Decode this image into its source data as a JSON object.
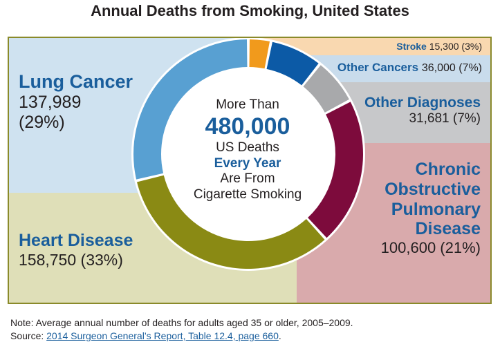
{
  "chart_data": {
    "type": "pie",
    "title": "Annual Deaths from Smoking, United States",
    "categories": [
      "Stroke",
      "Other Cancers",
      "Other Diagnoses",
      "Chronic Obstructive Pulmonary Disease",
      "Heart Disease",
      "Lung Cancer"
    ],
    "series": [
      {
        "values": [
          15300,
          36000,
          31681,
          100600,
          158750,
          137989
        ],
        "value_labels": [
          "15,300",
          "36,000",
          "31,681",
          "100,600",
          "158,750",
          "137,989"
        ],
        "percent_labels": [
          "(3%)",
          "(7%)",
          "(7%)",
          "(21%)",
          "(33%)",
          "(29%)"
        ]
      }
    ],
    "colors": [
      "#f19a1c",
      "#0c5aa6",
      "#a8a9ab",
      "#7d0b3c",
      "#8a8a14",
      "#58a0d2"
    ],
    "panel_colors": [
      "#f9d8b0",
      "#c9dcec",
      "#c7c8ca",
      "#d9aaac",
      "#dfdfb8",
      "#cfe2f0"
    ],
    "donut": true,
    "center_text": {
      "line1": "More Than",
      "big": "480,000",
      "line3": "US Deaths",
      "line4": "Every Year",
      "line5": "Are From",
      "line6": "Cigarette Smoking"
    }
  },
  "labels": {
    "lung": {
      "name": "Lung Cancer",
      "value": "137,989",
      "percent": "(29%)"
    },
    "heart": {
      "name": "Heart Disease",
      "value": "158,750 (33%)"
    },
    "copd": {
      "name1": "Chronic",
      "name2": "Obstructive",
      "name3": "Pulmonary",
      "name4": "Disease",
      "value": "100,600 (21%)"
    },
    "othd": {
      "name": "Other Diagnoses",
      "value": "31,681 (7%)"
    },
    "othc": {
      "name": "Other Cancers",
      "value": "36,000 (7%)"
    },
    "stroke": {
      "name": "Stroke",
      "value": "15,300 (3%)"
    }
  },
  "note": {
    "line1": "Note: Average annual number of deaths for adults aged 35 or older, 2005–2009.",
    "source_prefix": "Source: ",
    "source_link": "2014 Surgeon General’s Report, Table 12.4, page 660",
    "source_suffix": "."
  }
}
